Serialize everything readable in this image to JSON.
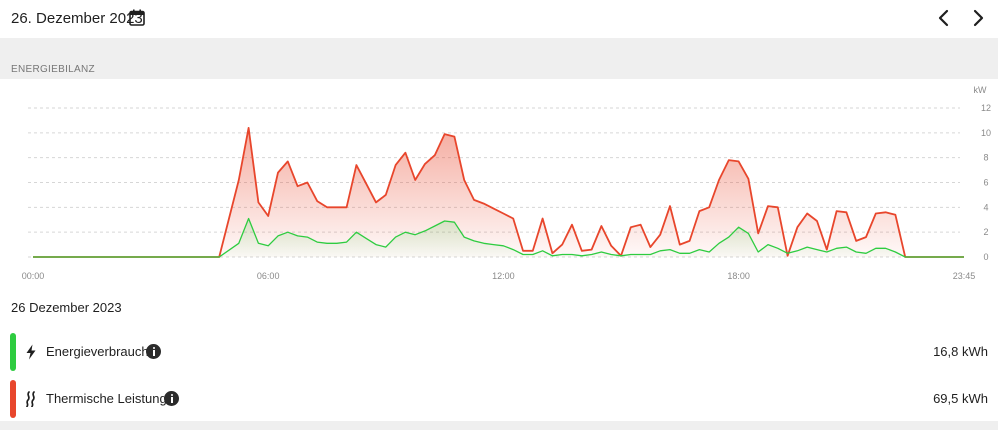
{
  "header": {
    "date": "26. Dezember 2023",
    "calendar_icon": "calendar-icon",
    "prev_icon": "chevron-left-icon",
    "next_icon": "chevron-right-icon"
  },
  "section": {
    "title": "ENERGIEBILANZ"
  },
  "chart_data": {
    "type": "area",
    "ylabel": "kW",
    "ylim": [
      0,
      12
    ],
    "yticks": [
      "0",
      "2",
      "4",
      "6",
      "8",
      "10",
      "12"
    ],
    "xticks": [
      "00:00",
      "06:00",
      "12:00",
      "18:00",
      "23:45"
    ],
    "grid": true,
    "series": [
      {
        "name": "Thermische Leistung",
        "color": "#e8462c",
        "x": [
          "00:00",
          "04:45",
          "05:15",
          "05:30",
          "05:45",
          "06:00",
          "06:15",
          "06:30",
          "06:45",
          "07:00",
          "07:15",
          "07:30",
          "07:45",
          "08:00",
          "08:15",
          "08:30",
          "08:45",
          "09:00",
          "09:15",
          "09:30",
          "09:45",
          "10:00",
          "10:15",
          "10:30",
          "10:45",
          "11:00",
          "11:15",
          "11:30",
          "11:45",
          "12:00",
          "12:15",
          "12:30",
          "12:45",
          "13:00",
          "13:15",
          "13:30",
          "13:45",
          "14:00",
          "14:15",
          "14:30",
          "14:45",
          "15:00",
          "15:15",
          "15:30",
          "15:45",
          "16:00",
          "16:15",
          "16:30",
          "16:45",
          "17:00",
          "17:15",
          "17:30",
          "17:45",
          "18:00",
          "18:15",
          "18:30",
          "18:45",
          "19:00",
          "19:15",
          "19:30",
          "19:45",
          "20:00",
          "20:15",
          "20:30",
          "20:45",
          "21:00",
          "21:15",
          "21:30",
          "21:45",
          "22:00",
          "22:15",
          "22:30",
          "23:45"
        ],
        "values": [
          0,
          0,
          6.2,
          10.4,
          4.4,
          3.3,
          6.8,
          7.7,
          5.7,
          6.0,
          4.5,
          4.0,
          4.0,
          4.0,
          7.4,
          5.9,
          4.4,
          5.0,
          7.4,
          8.4,
          6.2,
          7.5,
          8.2,
          9.9,
          9.7,
          6.2,
          4.6,
          4.3,
          3.9,
          3.5,
          3.1,
          0.5,
          0.5,
          3.1,
          0.3,
          1.0,
          2.6,
          0.5,
          0.6,
          2.5,
          0.9,
          0.1,
          2.4,
          2.6,
          0.8,
          1.8,
          4.1,
          1.0,
          1.3,
          3.7,
          4.0,
          6.2,
          7.8,
          7.7,
          6.3,
          1.9,
          4.1,
          4.0,
          0.1,
          2.4,
          3.5,
          2.9,
          0.6,
          3.7,
          3.6,
          1.3,
          1.6,
          3.5,
          3.6,
          3.4,
          0,
          0,
          0
        ]
      },
      {
        "name": "Energieverbrauch",
        "color": "#2ecc40",
        "x": [
          "00:00",
          "04:45",
          "05:15",
          "05:30",
          "05:45",
          "06:00",
          "06:15",
          "06:30",
          "06:45",
          "07:00",
          "07:15",
          "07:30",
          "07:45",
          "08:00",
          "08:15",
          "08:30",
          "08:45",
          "09:00",
          "09:15",
          "09:30",
          "09:45",
          "10:00",
          "10:15",
          "10:30",
          "10:45",
          "11:00",
          "11:15",
          "11:30",
          "11:45",
          "12:00",
          "12:15",
          "12:30",
          "12:45",
          "13:00",
          "13:15",
          "13:30",
          "13:45",
          "14:00",
          "14:15",
          "14:30",
          "14:45",
          "15:00",
          "15:15",
          "15:30",
          "15:45",
          "16:00",
          "16:15",
          "16:30",
          "16:45",
          "17:00",
          "17:15",
          "17:30",
          "17:45",
          "18:00",
          "18:15",
          "18:30",
          "18:45",
          "19:00",
          "19:15",
          "19:30",
          "19:45",
          "20:00",
          "20:15",
          "20:30",
          "20:45",
          "21:00",
          "21:15",
          "21:30",
          "21:45",
          "22:00",
          "22:15",
          "22:30",
          "23:45"
        ],
        "values": [
          0,
          0,
          1.1,
          3.1,
          1.1,
          0.9,
          1.7,
          2.0,
          1.7,
          1.6,
          1.2,
          1.1,
          1.1,
          1.2,
          2.0,
          1.5,
          1.0,
          0.8,
          1.6,
          2.0,
          1.8,
          2.1,
          2.5,
          2.9,
          2.8,
          1.6,
          1.3,
          1.1,
          1.0,
          0.9,
          0.6,
          0.2,
          0.2,
          0.5,
          0.1,
          0.2,
          0.2,
          0.1,
          0.2,
          0.4,
          0.2,
          0.1,
          0.2,
          0.2,
          0.2,
          0.5,
          0.6,
          0.3,
          0.3,
          0.6,
          0.4,
          1.1,
          1.6,
          2.4,
          1.9,
          0.4,
          1.0,
          0.7,
          0.3,
          0.5,
          0.8,
          0.6,
          0.4,
          0.7,
          0.8,
          0.4,
          0.3,
          0.7,
          0.7,
          0.4,
          0,
          0,
          0
        ]
      }
    ]
  },
  "summary": {
    "date": "26 Dezember 2023",
    "rows": [
      {
        "label": "Energieverbrauch",
        "value": "16,8 kWh",
        "color": "#2ecc40",
        "icon": "bolt-icon"
      },
      {
        "label": "Thermische Leistung",
        "value": "69,5 kWh",
        "color": "#e8462c",
        "icon": "heat-waves-icon"
      }
    ]
  }
}
